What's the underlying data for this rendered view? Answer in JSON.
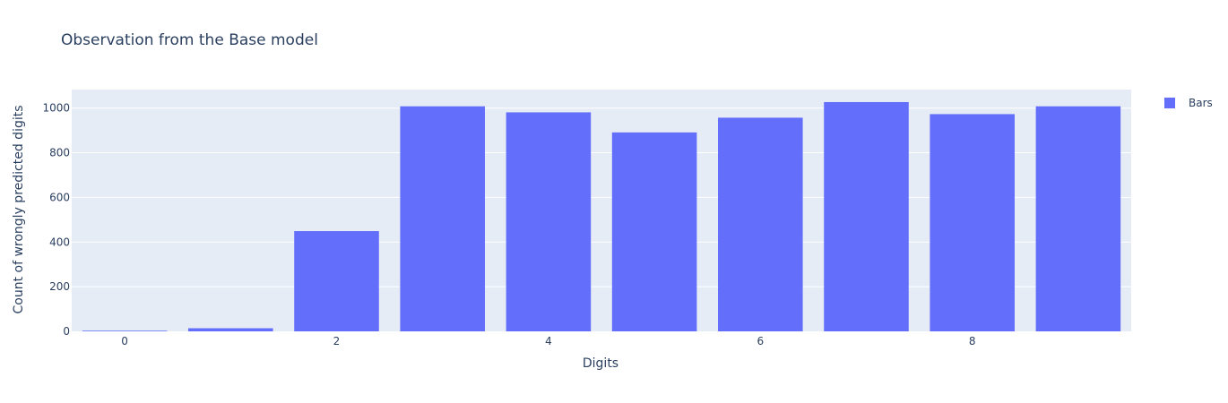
{
  "chart_data": {
    "type": "bar",
    "title": "Observation from the Base model",
    "xlabel": "Digits",
    "ylabel": "Count of wrongly predicted digits",
    "x": [
      0,
      1,
      2,
      3,
      4,
      5,
      6,
      7,
      8,
      9
    ],
    "x_tick_labels": [
      "0",
      "2",
      "4",
      "6",
      "8"
    ],
    "x_tick_values": [
      0,
      2,
      4,
      6,
      8
    ],
    "y_tick_values": [
      0,
      200,
      400,
      600,
      800,
      1000
    ],
    "y_tick_labels": [
      "0",
      "200",
      "400",
      "600",
      "800",
      "1000"
    ],
    "ylim": [
      0,
      1083
    ],
    "xlim": [
      -0.5,
      9.5
    ],
    "series": [
      {
        "name": "Bars",
        "values": [
          3,
          14,
          449,
          1008,
          981,
          891,
          957,
          1027,
          973,
          1008
        ],
        "color": "#636efa"
      }
    ],
    "plot_background": "#e5ecf6",
    "grid": true,
    "legend_position": "top-right"
  }
}
